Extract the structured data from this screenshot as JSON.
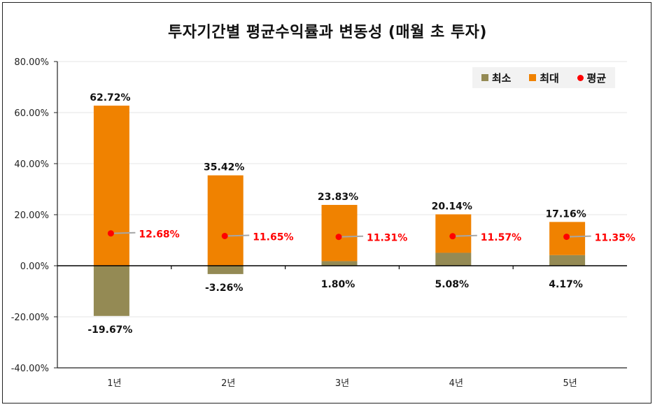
{
  "chart_data": {
    "type": "bar",
    "title": "투자기간별 평균수익률과 변동성 (매월 초 투자)",
    "categories": [
      "1년",
      "2년",
      "3년",
      "4년",
      "5년"
    ],
    "series": [
      {
        "name": "최소",
        "values": [
          -19.67,
          -3.26,
          1.8,
          5.08,
          4.17
        ],
        "labels": [
          "-19.67%",
          "-3.26%",
          "1.80%",
          "5.08%",
          "4.17%"
        ],
        "color": "#948a54"
      },
      {
        "name": "최대",
        "values": [
          62.72,
          35.42,
          23.83,
          20.14,
          17.16
        ],
        "labels": [
          "62.72%",
          "35.42%",
          "23.83%",
          "20.14%",
          "17.16%"
        ],
        "color": "#f08200"
      },
      {
        "name": "평균",
        "values": [
          12.68,
          11.65,
          11.31,
          11.57,
          11.35
        ],
        "labels": [
          "12.68%",
          "11.65%",
          "11.31%",
          "11.57%",
          "11.35%"
        ],
        "color": "#ff0000"
      }
    ],
    "ylim": [
      -40,
      80
    ],
    "yticks": [
      "80.00%",
      "60.00%",
      "40.00%",
      "20.00%",
      "0.00%",
      "-20.00%",
      "-40.00%"
    ],
    "ytick_values": [
      80,
      60,
      40,
      20,
      0,
      -20,
      -40
    ],
    "legend_position": "top-right",
    "grid": true
  }
}
